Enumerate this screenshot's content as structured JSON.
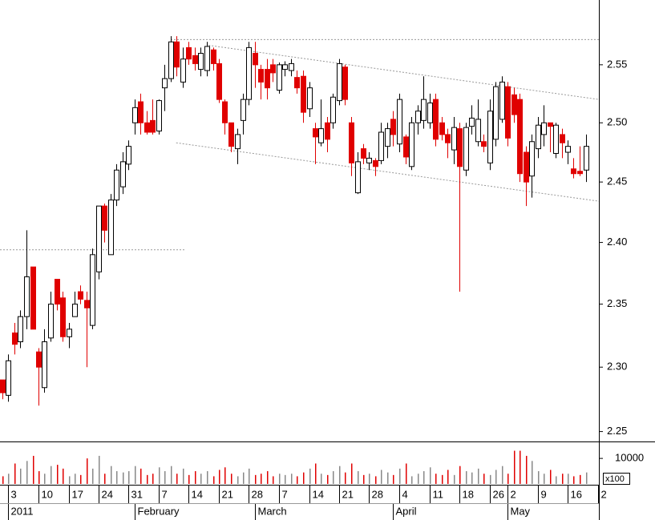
{
  "chart_data": {
    "type": "candlestick",
    "log": true,
    "ylim": [
      2.243,
      2.607
    ],
    "yticks": [
      {
        "value": 2.25,
        "label": "2.25"
      },
      {
        "value": 2.3,
        "label": "2.30"
      },
      2.35,
      {
        "value": 2.4,
        "label": "2.40"
      },
      2.45,
      {
        "value": 2.5,
        "label": "2.50"
      },
      2.55
    ],
    "xlim": [
      -0.4,
      99.2
    ],
    "up_color": "#ffffff",
    "down_color": "#e00000",
    "open": [
      2.29,
      2.278,
      2.327,
      2.32,
      2.34,
      2.38,
      2.312,
      2.284,
      2.323,
      2.37,
      2.355,
      2.324,
      2.34,
      2.36,
      2.353,
      2.333,
      2.376,
      2.43,
      2.39,
      2.435,
      2.446,
      2.465,
      2.5,
      2.518,
      2.5,
      2.502,
      2.493,
      2.53,
      2.538,
      2.57,
      2.535,
      2.565,
      2.558,
      2.546,
      2.545,
      2.563,
      2.551,
      2.518,
      2.5,
      2.478,
      2.502,
      2.52,
      2.56,
      2.546,
      2.546,
      2.55,
      2.528,
      2.546,
      2.545,
      2.539,
      2.54,
      2.512,
      2.495,
      2.483,
      2.5,
      2.5,
      2.519,
      2.548,
      2.5,
      2.441,
      2.478,
      2.466,
      2.468,
      2.468,
      2.48,
      2.503,
      2.482,
      2.488,
      2.463,
      2.5,
      2.502,
      2.5,
      2.52,
      2.5,
      2.49,
      2.477,
      2.495,
      2.46,
      2.497,
      2.484,
      2.484,
      2.466,
      2.486,
      2.503,
      2.531,
      2.524,
      2.52,
      2.475,
      2.455,
      2.478,
      2.49,
      2.5,
      2.474,
      2.49,
      2.475,
      2.461,
      2.459,
      2.46
    ],
    "high": [
      2.29,
      2.31,
      2.335,
      2.345,
      2.41,
      2.38,
      2.315,
      2.33,
      2.36,
      2.37,
      2.36,
      2.335,
      2.36,
      2.365,
      2.36,
      2.395,
      2.43,
      2.432,
      2.44,
      2.465,
      2.475,
      2.485,
      2.52,
      2.525,
      2.51,
      2.52,
      2.52,
      2.55,
      2.575,
      2.575,
      2.565,
      2.57,
      2.565,
      2.565,
      2.57,
      2.565,
      2.555,
      2.52,
      2.5,
      2.495,
      2.525,
      2.57,
      2.57,
      2.55,
      2.555,
      2.555,
      2.552,
      2.553,
      2.555,
      2.545,
      2.545,
      2.535,
      2.5,
      2.52,
      2.505,
      2.525,
      2.555,
      2.55,
      2.505,
      2.475,
      2.482,
      2.475,
      2.47,
      2.5,
      2.5,
      2.51,
      2.525,
      2.49,
      2.505,
      2.515,
      2.54,
      2.525,
      2.525,
      2.505,
      2.495,
      2.505,
      2.5,
      2.5,
      2.515,
      2.52,
      2.49,
      2.52,
      2.535,
      2.54,
      2.535,
      2.53,
      2.525,
      2.48,
      2.49,
      2.505,
      2.515,
      2.5,
      2.5,
      2.495,
      2.485,
      2.47,
      2.48,
      2.49
    ],
    "low": [
      2.275,
      2.273,
      2.31,
      2.315,
      2.33,
      2.33,
      2.27,
      2.28,
      2.32,
      2.345,
      2.32,
      2.315,
      2.34,
      2.35,
      2.3,
      2.33,
      2.37,
      2.4,
      2.39,
      2.43,
      2.44,
      2.46,
      2.49,
      2.49,
      2.49,
      2.49,
      2.49,
      2.51,
      2.535,
      2.54,
      2.53,
      2.55,
      2.545,
      2.54,
      2.54,
      2.545,
      2.517,
      2.49,
      2.475,
      2.465,
      2.49,
      2.515,
      2.53,
      2.52,
      2.52,
      2.535,
      2.525,
      2.54,
      2.54,
      2.525,
      2.5,
      2.505,
      2.465,
      2.48,
      2.475,
      2.495,
      2.515,
      2.515,
      2.455,
      2.44,
      2.465,
      2.46,
      2.455,
      2.465,
      2.47,
      2.48,
      2.475,
      2.465,
      2.46,
      2.49,
      2.495,
      2.495,
      2.48,
      2.485,
      2.47,
      2.465,
      2.36,
      2.455,
      2.49,
      2.48,
      2.475,
      2.46,
      2.48,
      2.5,
      2.48,
      2.5,
      2.45,
      2.43,
      2.437,
      2.47,
      2.48,
      2.475,
      2.47,
      2.47,
      2.465,
      2.453,
      2.455,
      2.45
    ],
    "close": [
      2.28,
      2.305,
      2.318,
      2.34,
      2.372,
      2.33,
      2.3,
      2.32,
      2.35,
      2.35,
      2.324,
      2.33,
      2.35,
      2.354,
      2.347,
      2.39,
      2.43,
      2.41,
      2.435,
      2.46,
      2.467,
      2.48,
      2.513,
      2.5,
      2.492,
      2.492,
      2.519,
      2.538,
      2.57,
      2.548,
      2.555,
      2.555,
      2.551,
      2.56,
      2.566,
      2.551,
      2.52,
      2.5,
      2.48,
      2.49,
      2.52,
      2.565,
      2.55,
      2.535,
      2.53,
      2.543,
      2.55,
      2.55,
      2.551,
      2.53,
      2.509,
      2.53,
      2.488,
      2.495,
      2.486,
      2.522,
      2.551,
      2.52,
      2.466,
      2.467,
      2.47,
      2.47,
      2.463,
      2.492,
      2.495,
      2.49,
      2.52,
      2.471,
      2.5,
      2.51,
      2.52,
      2.517,
      2.486,
      2.49,
      2.483,
      2.496,
      2.463,
      2.496,
      2.504,
      2.503,
      2.48,
      2.51,
      2.531,
      2.535,
      2.487,
      2.507,
      2.457,
      2.45,
      2.484,
      2.498,
      2.5,
      2.497,
      2.498,
      2.483,
      2.48,
      2.457,
      2.457,
      2.48
    ],
    "trendlines": [
      {
        "x1": 28,
        "x2": 99.2,
        "y1": 2.572,
        "y2": 2.572
      },
      {
        "x1": -0.4,
        "x2": 30.5,
        "y1": 2.394,
        "y2": 2.394
      },
      {
        "x1": 34.3,
        "x2": 99.2,
        "y1": 2.567,
        "y2": 2.52
      },
      {
        "x1": 28.9,
        "x2": 99.2,
        "y1": 2.483,
        "y2": 2.434
      }
    ],
    "volume": {
      "values": [
        3000,
        4000,
        8000,
        6000,
        9000,
        11000,
        5000,
        4000,
        7000,
        7500,
        6000,
        3000,
        4000,
        3500,
        10000,
        6000,
        11000,
        4000,
        7000,
        5000,
        4500,
        5000,
        7000,
        6000,
        3500,
        4000,
        6500,
        5000,
        7000,
        4000,
        6000,
        3500,
        5000,
        4000,
        5000,
        3000,
        5500,
        6500,
        4000,
        3000,
        4500,
        6000,
        3500,
        4000,
        5000,
        3000,
        4000,
        3500,
        4000,
        3000,
        4500,
        6000,
        8000,
        4000,
        3500,
        5000,
        7000,
        4500,
        8000,
        5000,
        3500,
        4000,
        3000,
        5500,
        4500,
        3500,
        6000,
        8000,
        3000,
        4000,
        5000,
        6500,
        4000,
        3500,
        5500,
        3500,
        7000,
        5000,
        4500,
        6000,
        4000,
        3500,
        5500,
        7000,
        4000,
        13000,
        13000,
        11000,
        9000,
        5000,
        4000,
        5500,
        3000,
        4000,
        4000,
        3000,
        3500,
        4500
      ],
      "ylim": [
        0,
        16000
      ],
      "yticks": [
        10000
      ],
      "unit_label": "x100",
      "up_color": "#888888",
      "down_color": "#e00000"
    },
    "xticks": [
      {
        "value": 1,
        "label": "3"
      },
      {
        "value": 6,
        "label": "10"
      },
      {
        "value": 11,
        "label": "17"
      },
      {
        "value": 16,
        "label": "24"
      },
      {
        "value": 21,
        "label": "31"
      },
      {
        "value": 26,
        "label": "7"
      },
      {
        "value": 31,
        "label": "14"
      },
      {
        "value": 36,
        "label": "21"
      },
      {
        "value": 41,
        "label": "28"
      },
      {
        "value": 46,
        "label": "7"
      },
      {
        "value": 51,
        "label": "14"
      },
      {
        "value": 56,
        "label": "21"
      },
      {
        "value": 61,
        "label": "28"
      },
      {
        "value": 66,
        "label": "4"
      },
      {
        "value": 71,
        "label": "11"
      },
      {
        "value": 76,
        "label": "18"
      },
      {
        "value": 81,
        "label": "26"
      },
      {
        "value": 84,
        "label": "2"
      },
      {
        "value": 89,
        "label": "9"
      },
      {
        "value": 94,
        "label": "16"
      },
      {
        "value": 99,
        "label": "2"
      }
    ],
    "month_ticks": [
      {
        "value": 1,
        "label": "2011"
      },
      {
        "value": 22,
        "label": "February"
      },
      {
        "value": 42,
        "label": "March"
      },
      {
        "value": 65,
        "label": "April"
      },
      {
        "value": 84,
        "label": "May"
      }
    ]
  }
}
